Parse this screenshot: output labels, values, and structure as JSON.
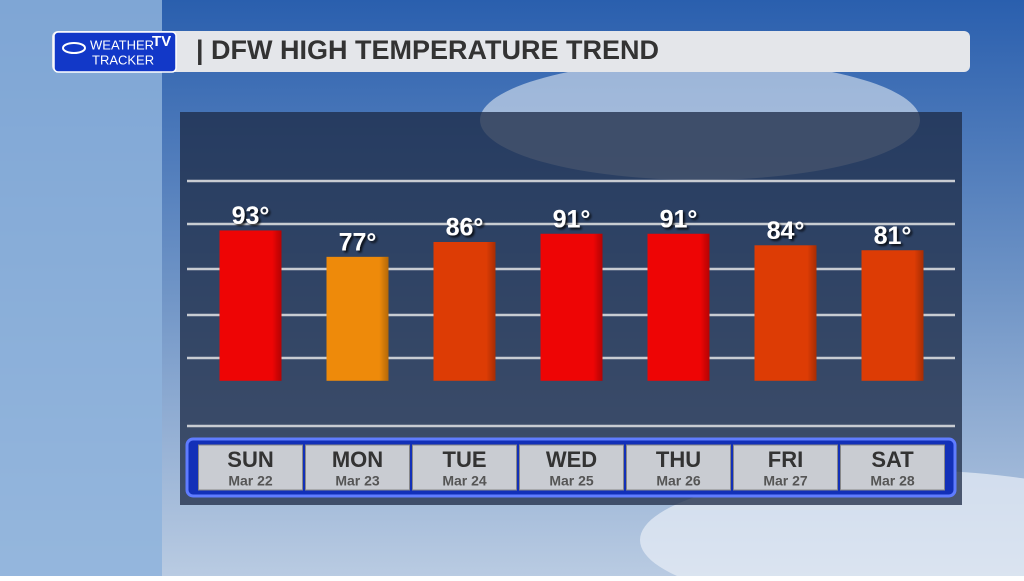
{
  "logo": {
    "line1": "WEATHER",
    "badge": "TV",
    "line2": "TRACKER"
  },
  "chart_data": {
    "type": "bar",
    "title": "| DFW HIGH TEMPERATURE TREND",
    "categories": [
      "SUN",
      "MON",
      "TUE",
      "WED",
      "THU",
      "FRI",
      "SAT"
    ],
    "dates": [
      "Mar 22",
      "Mar 23",
      "Mar 24",
      "Mar 25",
      "Mar 26",
      "Mar 27",
      "Mar 28"
    ],
    "values": [
      93,
      77,
      86,
      91,
      91,
      84,
      81
    ],
    "value_labels": [
      "93°",
      "77°",
      "86°",
      "91°",
      "91°",
      "84°",
      "81°"
    ],
    "colors": [
      "#ee0505",
      "#ee8a0a",
      "#dd3c05",
      "#ee0505",
      "#ee0505",
      "#dd3c05",
      "#dd3c05"
    ],
    "ylim": [
      -25,
      123
    ]
  }
}
